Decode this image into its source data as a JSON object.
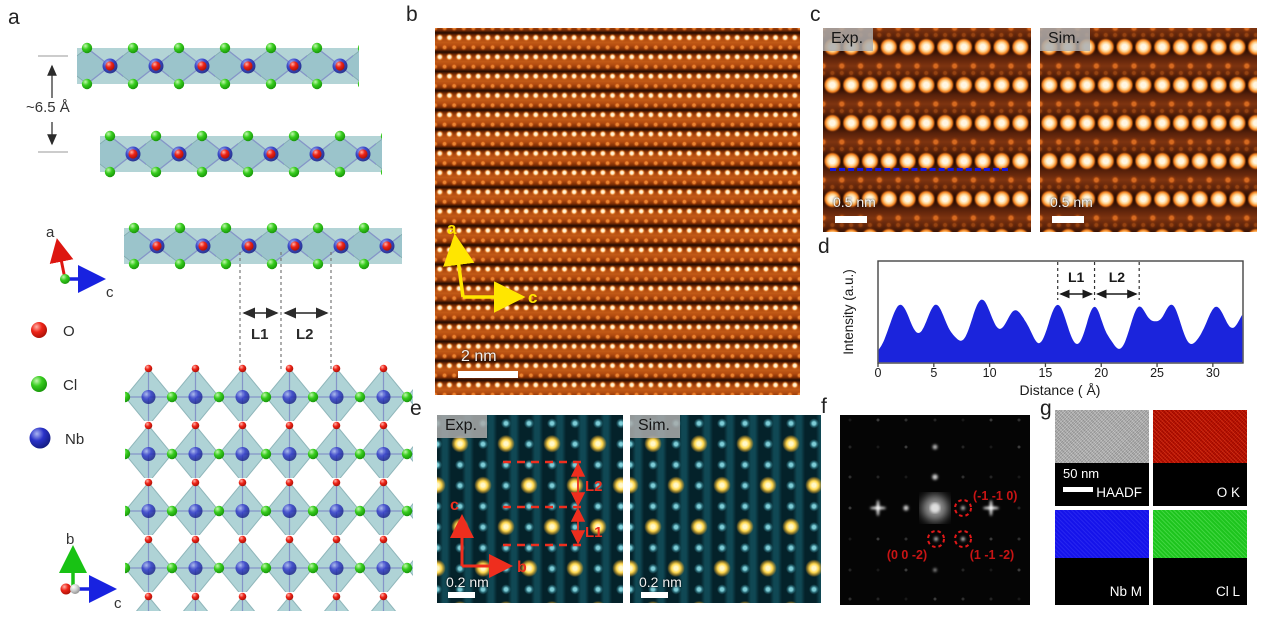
{
  "panels": {
    "a": {
      "label": "a",
      "spacing_label": "~6.5 Å",
      "l1": "L1",
      "l2": "L2",
      "axis_top": {
        "v": "a",
        "h": "c"
      },
      "axis_bottom": {
        "v": "b",
        "h": "c"
      },
      "legend": [
        {
          "symbol": "O",
          "color": "#e02318"
        },
        {
          "symbol": "Cl",
          "color": "#2fc51e"
        },
        {
          "symbol": "Nb",
          "color": "#2a32c8"
        }
      ]
    },
    "b": {
      "label": "b",
      "scale": "2 nm",
      "axis": {
        "v": "a",
        "h": "c"
      }
    },
    "c": {
      "label": "c",
      "exp": "Exp.",
      "sim": "Sim.",
      "scale": "0.5 nm"
    },
    "d": {
      "label": "d"
    },
    "e": {
      "label": "e",
      "exp": "Exp.",
      "sim": "Sim.",
      "scale": "0.2 nm",
      "l1": "L1",
      "l2": "L2",
      "axis": {
        "v": "c",
        "h": "b"
      }
    },
    "f": {
      "label": "f",
      "reflections": [
        "(-1 -1 0)",
        "(0 0 -2)",
        "(1 -1 -2)"
      ],
      "annotation_color": "#c81414"
    },
    "g": {
      "label": "g",
      "scale": "50 nm",
      "maps": [
        {
          "label": "HAADF",
          "color": "#b2b2b2"
        },
        {
          "label": "O K",
          "color": "#bb1000"
        },
        {
          "label": "Nb M",
          "color": "#1513ea"
        },
        {
          "label": "Cl L",
          "color": "#1ec41e"
        }
      ]
    }
  },
  "chart_data": {
    "type": "area",
    "xlabel": "Distance ( Å)",
    "ylabel": "Intensity (a.u.)",
    "xlim": [
      0,
      32.7
    ],
    "xticks": [
      0,
      5,
      10,
      15,
      20,
      25,
      30
    ],
    "grid": false,
    "legend_position": "none",
    "fill_color": "#1b24dc",
    "baseline": 0.07,
    "peaks": [
      {
        "x": 2.0,
        "h": 0.5,
        "w": 0.95
      },
      {
        "x": 5.2,
        "h": 0.5,
        "w": 0.9
      },
      {
        "x": 6.9,
        "h": 0.08,
        "w": 0.5
      },
      {
        "x": 9.3,
        "h": 0.55,
        "w": 0.95
      },
      {
        "x": 12.3,
        "h": 0.44,
        "w": 0.9
      },
      {
        "x": 13.6,
        "h": 0.1,
        "w": 0.5
      },
      {
        "x": 16.1,
        "h": 0.5,
        "w": 0.85
      },
      {
        "x": 19.4,
        "h": 0.48,
        "w": 0.75
      },
      {
        "x": 20.9,
        "h": 0.08,
        "w": 0.45
      },
      {
        "x": 23.4,
        "h": 0.48,
        "w": 0.8
      },
      {
        "x": 24.8,
        "h": 0.13,
        "w": 0.5
      },
      {
        "x": 26.3,
        "h": 0.5,
        "w": 0.85
      },
      {
        "x": 28.6,
        "h": 0.05,
        "w": 0.5
      },
      {
        "x": 30.3,
        "h": 0.48,
        "w": 0.95
      },
      {
        "x": 33.0,
        "h": 0.42,
        "w": 0.8
      }
    ],
    "annotation_lines_x": [
      16.1,
      19.4,
      23.4
    ],
    "annotation_labels": [
      "L1",
      "L2"
    ]
  }
}
